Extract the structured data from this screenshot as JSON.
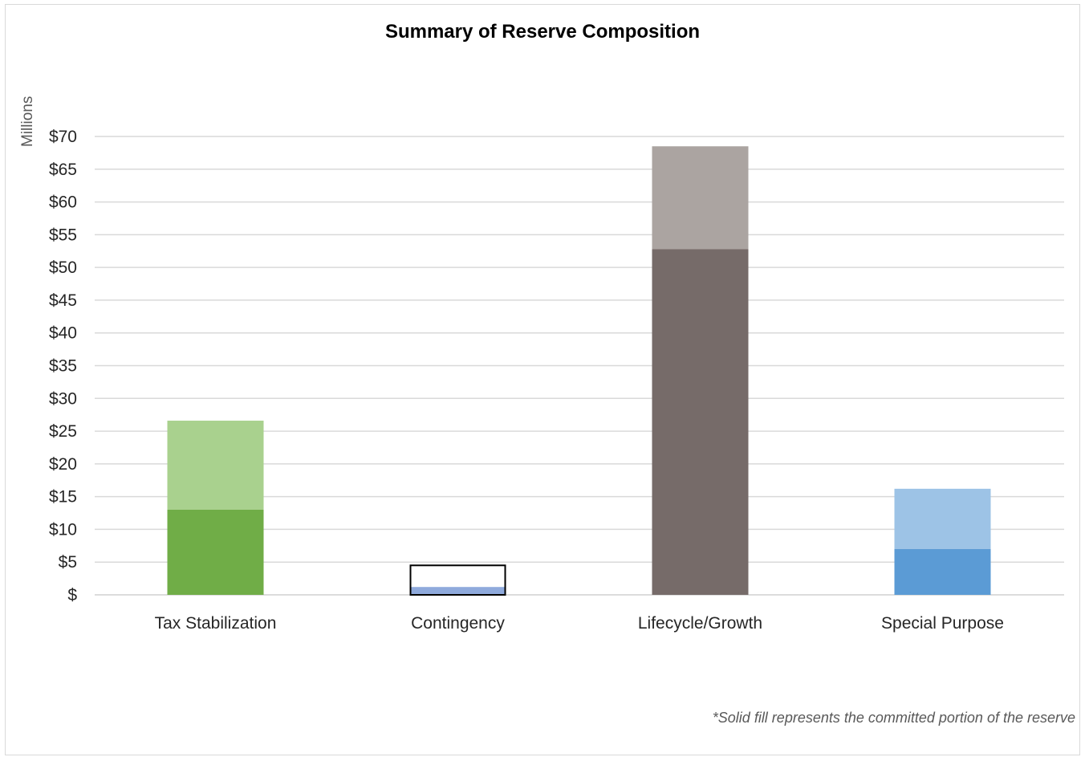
{
  "chart_data": {
    "type": "bar",
    "stacked": true,
    "title": "Summary of Reserve Composition",
    "ylabel": "Millions",
    "xlabel": "",
    "ylim": [
      0,
      70
    ],
    "ytick_step": 5,
    "ytick_labels": [
      "$",
      "$5",
      "$10",
      "$15",
      "$20",
      "$25",
      "$30",
      "$35",
      "$40",
      "$45",
      "$50",
      "$55",
      "$60",
      "$65",
      "$70"
    ],
    "grid": true,
    "categories": [
      "Tax Stabilization",
      "Contingency",
      "Lifecycle/Growth",
      "Special Purpose"
    ],
    "committed": [
      13.0,
      1.2,
      52.8,
      7.0
    ],
    "total": [
      26.6,
      4.5,
      68.5,
      16.2
    ],
    "colors": {
      "Tax Stabilization": {
        "committed": "#70ad47",
        "uncommitted": "#a9d18e"
      },
      "Contingency": {
        "committed": "#8faadc",
        "uncommitted": "#ffffff",
        "outline": "#000000"
      },
      "Lifecycle/Growth": {
        "committed": "#766b69",
        "uncommitted": "#aba4a1"
      },
      "Special Purpose": {
        "committed": "#5b9bd5",
        "uncommitted": "#9dc3e6"
      }
    },
    "footnote": "*Solid fill represents the committed portion of the reserve"
  }
}
